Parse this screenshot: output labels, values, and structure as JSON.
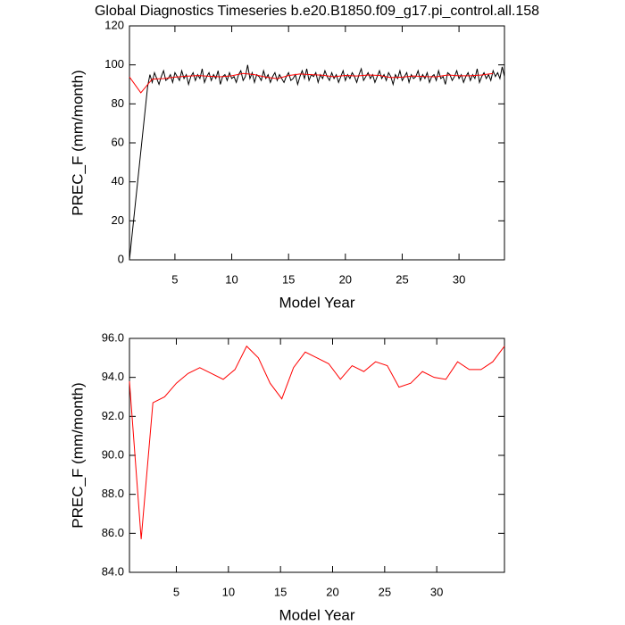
{
  "chart_data": [
    {
      "type": "line",
      "title": "Global Diagnostics Timeseries b.e20.B1850.f09_g17.pi_control.all.158",
      "xlabel": "Model Year",
      "ylabel": "PREC_F (mm/month)",
      "xlim": [
        1,
        34
      ],
      "ylim": [
        0,
        120
      ],
      "xticks": [
        5,
        10,
        15,
        20,
        25,
        30
      ],
      "yticks": [
        0,
        20,
        40,
        60,
        80,
        100,
        120
      ],
      "series": [
        {
          "color": "#000000",
          "x": [
            1,
            2.6,
            2.8,
            3,
            3.2,
            3.4,
            3.6,
            3.8,
            4,
            4.2,
            4.4,
            4.6,
            4.8,
            5,
            5.2,
            5.4,
            5.6,
            5.8,
            6,
            6.2,
            6.4,
            6.6,
            6.8,
            7,
            7.2,
            7.4,
            7.6,
            7.8,
            8,
            8.2,
            8.4,
            8.6,
            8.8,
            9,
            9.2,
            9.4,
            9.6,
            9.8,
            10,
            10.2,
            10.4,
            10.6,
            10.8,
            11,
            11.2,
            11.4,
            11.6,
            11.8,
            12,
            12.2,
            12.4,
            12.6,
            12.8,
            13,
            13.2,
            13.4,
            13.6,
            13.8,
            14,
            14.2,
            14.4,
            14.6,
            14.8,
            15,
            15.2,
            15.4,
            15.6,
            15.8,
            16,
            16.2,
            16.4,
            16.6,
            16.8,
            17,
            17.2,
            17.4,
            17.6,
            17.8,
            18,
            18.2,
            18.4,
            18.6,
            18.8,
            19,
            19.2,
            19.4,
            19.6,
            19.8,
            20,
            20.2,
            20.4,
            20.6,
            20.8,
            21,
            21.2,
            21.4,
            21.6,
            21.8,
            22,
            22.2,
            22.4,
            22.6,
            22.8,
            23,
            23.2,
            23.4,
            23.6,
            23.8,
            24,
            24.2,
            24.4,
            24.6,
            24.8,
            25,
            25.2,
            25.4,
            25.6,
            25.8,
            26,
            26.2,
            26.4,
            26.6,
            26.8,
            27,
            27.2,
            27.4,
            27.6,
            27.8,
            28,
            28.2,
            28.4,
            28.6,
            28.8,
            29,
            29.2,
            29.4,
            29.6,
            29.8,
            30,
            30.2,
            30.4,
            30.6,
            30.8,
            31,
            31.2,
            31.4,
            31.6,
            31.8,
            32,
            32.2,
            32.4,
            32.6,
            32.8,
            33,
            33.2,
            33.4,
            33.6,
            33.8,
            34
          ],
          "values": [
            0,
            89,
            95,
            91,
            96,
            93,
            90,
            94,
            97,
            92,
            93,
            95,
            91,
            96,
            94,
            92,
            97,
            93,
            95,
            90,
            94,
            96,
            92,
            95,
            93,
            98,
            91,
            94,
            96,
            92,
            95,
            93,
            97,
            90,
            94,
            95,
            92,
            96,
            93,
            94,
            91,
            95,
            97,
            92,
            94,
            100,
            93,
            96,
            91,
            95,
            94,
            92,
            97,
            93,
            95,
            91,
            94,
            96,
            92,
            95,
            93,
            91,
            94,
            96,
            92,
            93,
            95,
            90,
            94,
            97,
            93,
            98,
            92,
            95,
            94,
            96,
            91,
            95,
            93,
            97,
            94,
            92,
            96,
            93,
            95,
            91,
            94,
            97,
            92,
            95,
            93,
            96,
            94,
            91,
            95,
            98,
            92,
            94,
            96,
            93,
            95,
            91,
            94,
            97,
            93,
            95,
            92,
            96,
            94,
            90,
            95,
            93,
            97,
            92,
            94,
            96,
            91,
            95,
            93,
            94,
            97,
            92,
            95,
            93,
            96,
            91,
            94,
            95,
            92,
            97,
            93,
            94,
            90,
            96,
            95,
            92,
            94,
            97,
            93,
            95,
            91,
            94,
            96,
            92,
            95,
            93,
            98,
            91,
            94,
            96,
            93,
            95,
            92,
            97,
            94,
            96,
            93,
            99,
            94
          ]
        },
        {
          "color": "#ff0000",
          "x": [
            1,
            2,
            3,
            4,
            5,
            6,
            7,
            8,
            9,
            10,
            11,
            12,
            13,
            14,
            15,
            16,
            17,
            18,
            19,
            20,
            21,
            22,
            23,
            24,
            25,
            26,
            27,
            28,
            29,
            30,
            31,
            32,
            33
          ],
          "values": [
            93.8,
            85.7,
            92.7,
            93.0,
            93.7,
            94.2,
            94.5,
            94.2,
            93.9,
            94.4,
            95.6,
            95.0,
            93.7,
            92.9,
            94.5,
            95.3,
            95.0,
            94.7,
            93.9,
            94.6,
            94.3,
            94.8,
            94.6,
            93.5,
            93.7,
            94.3,
            94.0,
            93.9,
            94.8,
            94.4,
            94.4,
            94.8,
            95.6
          ]
        }
      ]
    },
    {
      "type": "line",
      "xlabel": "Model Year",
      "ylabel": "PREC_F (mm/month)",
      "xlim": [
        0.5,
        36.5
      ],
      "ylim": [
        84,
        96
      ],
      "xticks": [
        5,
        10,
        15,
        20,
        25,
        30
      ],
      "yticks": [
        {
          "value": 84,
          "label": "84.0"
        },
        {
          "value": 86,
          "label": "86.0"
        },
        {
          "value": 88,
          "label": "88.0"
        },
        {
          "value": 90,
          "label": "90.0"
        },
        {
          "value": 92,
          "label": "92.0"
        },
        {
          "value": 94,
          "label": "94.0"
        },
        {
          "value": 96,
          "label": "96.0"
        }
      ],
      "series": [
        {
          "color": "#ff0000",
          "x": [
            0.5,
            1.625,
            2.75,
            3.875,
            5,
            6.125,
            7.25,
            8.375,
            9.5,
            10.625,
            11.75,
            12.875,
            14,
            15.125,
            16.25,
            17.375,
            18.5,
            19.625,
            20.75,
            21.875,
            23,
            24.125,
            25.25,
            26.375,
            27.5,
            28.625,
            29.75,
            30.875,
            32,
            33.125,
            34.25,
            35.375,
            36.5
          ],
          "values": [
            93.8,
            85.7,
            92.7,
            93.0,
            93.7,
            94.2,
            94.5,
            94.2,
            93.9,
            94.4,
            95.6,
            95.0,
            93.7,
            92.9,
            94.5,
            95.3,
            95.0,
            94.7,
            93.9,
            94.6,
            94.3,
            94.8,
            94.6,
            93.5,
            93.7,
            94.3,
            94.0,
            93.9,
            94.8,
            94.4,
            94.4,
            94.8,
            95.6
          ]
        }
      ]
    }
  ]
}
